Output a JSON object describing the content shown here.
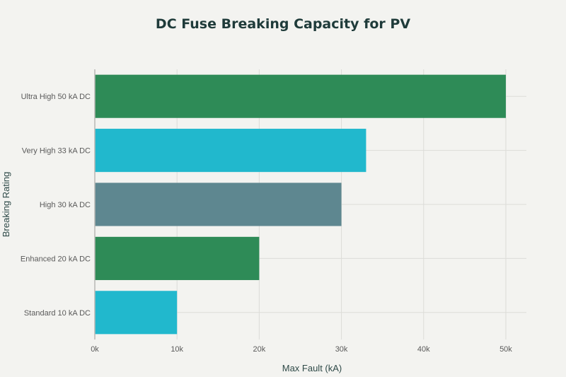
{
  "chart_data": {
    "type": "bar",
    "orientation": "horizontal",
    "title": "DC Fuse Breaking Capacity for PV",
    "xlabel": "Max Fault (kA)",
    "ylabel": "Breaking Rating",
    "categories": [
      "Ultra High 50 kA DC",
      "Very High 33 kA DC",
      "High 30 kA DC",
      "Enhanced 20 kA DC",
      "Standard 10 kA DC"
    ],
    "values": [
      50000,
      33000,
      30000,
      20000,
      10000
    ],
    "colors": [
      "#2e8b57",
      "#21b8cd",
      "#5e8790",
      "#2e8b57",
      "#21b8cd"
    ],
    "xlim": [
      0,
      52500
    ],
    "xticks": [
      0,
      10000,
      20000,
      30000,
      40000,
      50000
    ],
    "xtick_labels": [
      "0k",
      "10k",
      "20k",
      "30k",
      "40k",
      "50k"
    ],
    "grid": true,
    "legend": false
  }
}
